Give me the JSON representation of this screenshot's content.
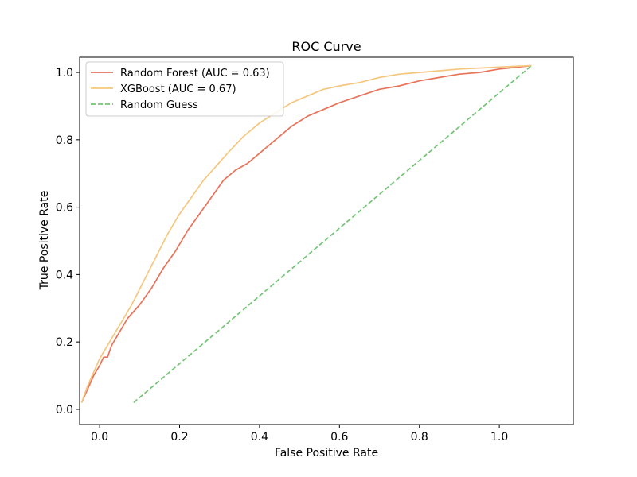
{
  "chart_data": {
    "type": "line",
    "title": "ROC Curve",
    "xlabel": "False Positive Rate",
    "ylabel": "True Positive Rate",
    "xlim": [
      -0.05,
      1.185
    ],
    "ylim": [
      -0.045,
      1.045
    ],
    "xticks": [
      0.0,
      0.2,
      0.4,
      0.6,
      0.8,
      1.0
    ],
    "yticks": [
      0.0,
      0.2,
      0.4,
      0.6,
      0.8,
      1.0
    ],
    "xtick_labels": [
      "0.0",
      "0.2",
      "0.4",
      "0.6",
      "0.8",
      "1.0"
    ],
    "ytick_labels": [
      "0.0",
      "0.2",
      "0.4",
      "0.6",
      "0.8",
      "1.0"
    ],
    "grid": false,
    "legend_position": "upper-left",
    "series": [
      {
        "name": "Random Forest (AUC = 0.63)",
        "color": "#e8735a",
        "style": "solid",
        "x": [
          -0.045,
          -0.03,
          -0.015,
          0.0,
          0.01,
          0.02,
          0.03,
          0.05,
          0.07,
          0.1,
          0.13,
          0.16,
          0.19,
          0.22,
          0.25,
          0.28,
          0.31,
          0.34,
          0.37,
          0.4,
          0.44,
          0.48,
          0.52,
          0.56,
          0.6,
          0.65,
          0.7,
          0.75,
          0.8,
          0.85,
          0.9,
          0.95,
          1.0,
          1.04,
          1.08
        ],
        "y": [
          0.02,
          0.06,
          0.1,
          0.13,
          0.155,
          0.155,
          0.19,
          0.23,
          0.27,
          0.31,
          0.36,
          0.42,
          0.47,
          0.53,
          0.58,
          0.63,
          0.68,
          0.71,
          0.73,
          0.76,
          0.8,
          0.84,
          0.87,
          0.89,
          0.91,
          0.93,
          0.95,
          0.96,
          0.975,
          0.985,
          0.995,
          1.0,
          1.01,
          1.015,
          1.02
        ]
      },
      {
        "name": "XGBoost (AUC = 0.67)",
        "color": "#f5c77e",
        "style": "solid",
        "x": [
          -0.045,
          -0.03,
          -0.015,
          0.0,
          0.02,
          0.05,
          0.08,
          0.11,
          0.14,
          0.17,
          0.2,
          0.23,
          0.26,
          0.29,
          0.32,
          0.36,
          0.4,
          0.44,
          0.48,
          0.52,
          0.56,
          0.6,
          0.65,
          0.7,
          0.75,
          0.8,
          0.85,
          0.9,
          0.95,
          1.0,
          1.04,
          1.08
        ],
        "y": [
          0.02,
          0.07,
          0.11,
          0.15,
          0.19,
          0.25,
          0.31,
          0.38,
          0.45,
          0.52,
          0.58,
          0.63,
          0.68,
          0.72,
          0.76,
          0.81,
          0.85,
          0.88,
          0.91,
          0.93,
          0.95,
          0.96,
          0.97,
          0.985,
          0.995,
          1.0,
          1.005,
          1.01,
          1.013,
          1.016,
          1.018,
          1.02
        ]
      },
      {
        "name": "Random Guess",
        "color": "#74c476",
        "style": "dashed",
        "x": [
          0.085,
          1.08
        ],
        "y": [
          0.02,
          1.02
        ]
      }
    ]
  }
}
